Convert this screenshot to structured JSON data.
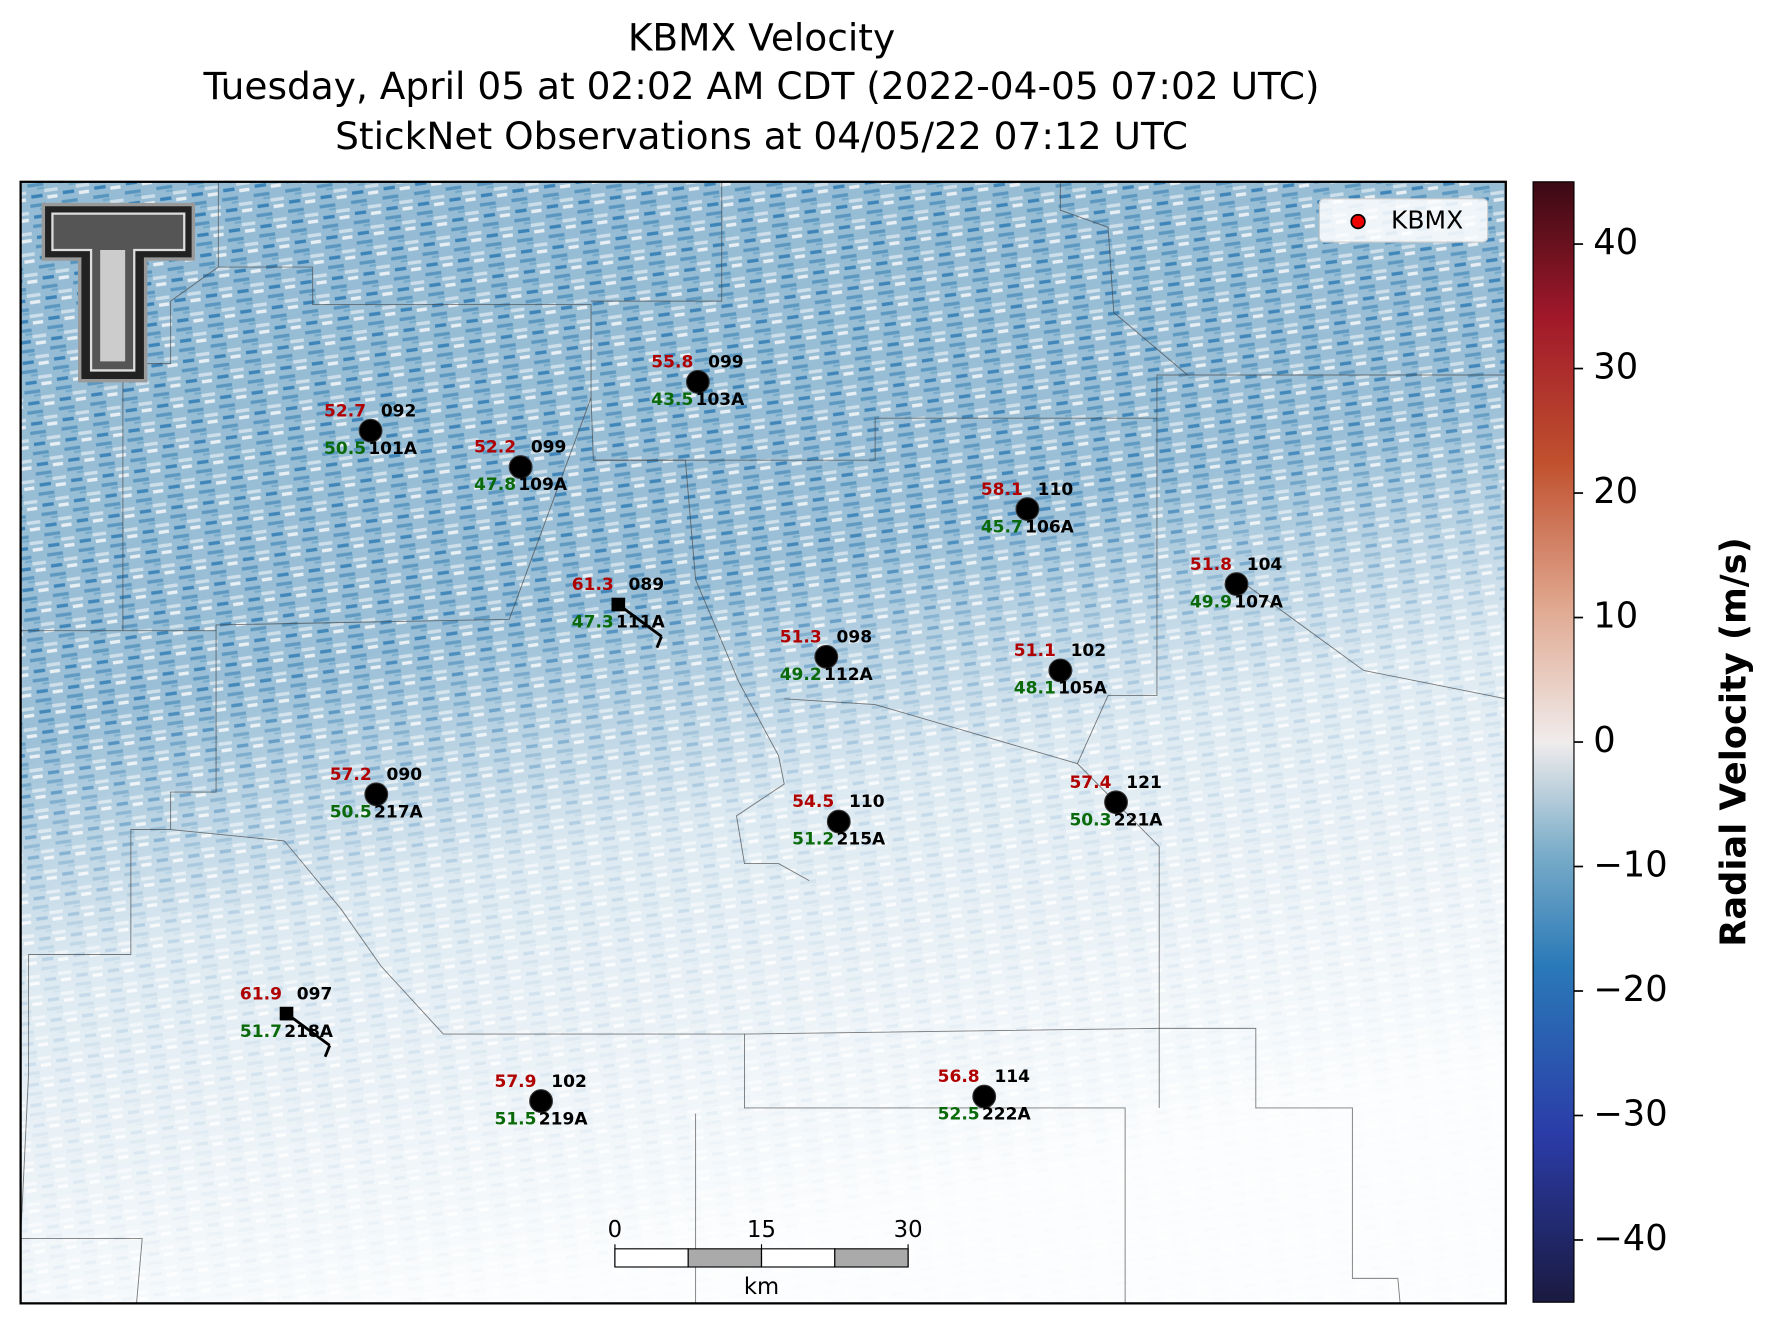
{
  "title": [
    "KBMX Velocity",
    "Tuesday, April 05 at 02:02 AM CDT (2022-04-05 07:02 UTC)",
    "StickNet Observations at 04/05/22 07:12 UTC"
  ],
  "legend": "KBMX",
  "colorbar": {
    "label": "Radial Velocity (m/s)",
    "lim": [
      -45,
      45
    ],
    "ticks": [
      {
        "value": -40,
        "label": "−40"
      },
      {
        "value": -30,
        "label": "−30"
      },
      {
        "value": -20,
        "label": "−20"
      },
      {
        "value": -10,
        "label": "−10"
      },
      0,
      10,
      20,
      30,
      40
    ]
  },
  "scale_bar": {
    "ticks": [
      0,
      15,
      30
    ],
    "unit": "km"
  },
  "stations": [
    {
      "id": "101A",
      "top_value": 52.7,
      "direction": "092",
      "bottom_value": 50.5
    },
    {
      "id": "109A",
      "top_value": 52.2,
      "direction": "099",
      "bottom_value": 47.8
    },
    {
      "id": "103A",
      "top_value": 55.8,
      "direction": "099",
      "bottom_value": 43.5
    },
    {
      "id": "106A",
      "top_value": 58.1,
      "direction": "110",
      "bottom_value": 45.7
    },
    {
      "id": "107A",
      "top_value": 51.8,
      "direction": "104",
      "bottom_value": 49.9
    },
    {
      "id": "111A",
      "top_value": 61.3,
      "direction": "089",
      "bottom_value": 47.3
    },
    {
      "id": "112A",
      "top_value": 51.3,
      "direction": "098",
      "bottom_value": 49.2
    },
    {
      "id": "105A",
      "top_value": 51.1,
      "direction": "102",
      "bottom_value": 48.1
    },
    {
      "id": "217A",
      "top_value": 57.2,
      "direction": "090",
      "bottom_value": 50.5
    },
    {
      "id": "215A",
      "top_value": 54.5,
      "direction": "110",
      "bottom_value": 51.2
    },
    {
      "id": "221A",
      "top_value": 57.4,
      "direction": "121",
      "bottom_value": 50.3
    },
    {
      "id": "218A",
      "top_value": 61.9,
      "direction": "097",
      "bottom_value": 51.7
    },
    {
      "id": "219A",
      "top_value": 57.9,
      "direction": "102",
      "bottom_value": 51.5
    },
    {
      "id": "222A",
      "top_value": 56.8,
      "direction": "114",
      "bottom_value": 52.5
    }
  ]
}
